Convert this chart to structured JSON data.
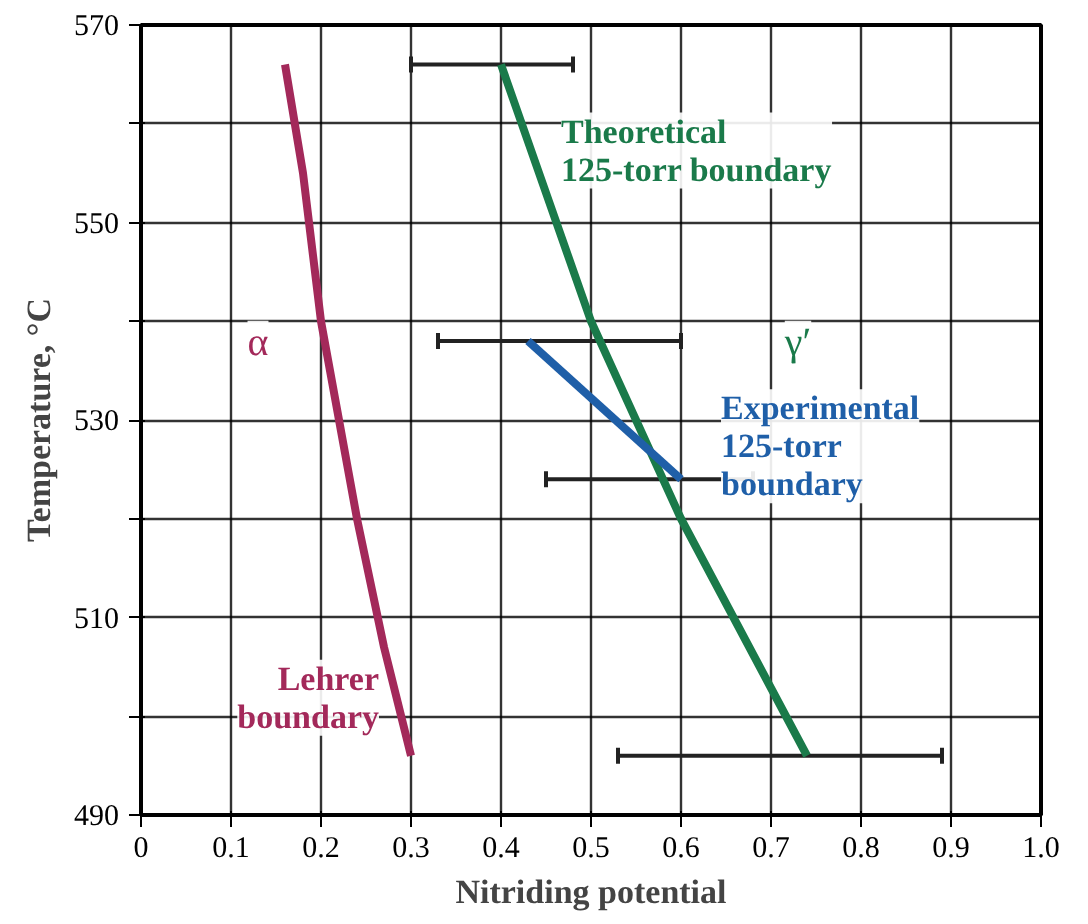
{
  "chart_data": {
    "type": "line",
    "xlabel": "Nitriding potential",
    "ylabel": "Temperature, °C",
    "xlim": [
      0,
      1
    ],
    "ylim": [
      490,
      570
    ],
    "xticks": [
      0,
      0.1,
      0.2,
      0.3,
      0.4,
      0.5,
      0.6,
      0.7,
      0.8,
      0.9,
      {
        "value": 1,
        "label": "1.0"
      }
    ],
    "yticks": [
      490,
      {
        "value": 500,
        "label": null
      },
      510,
      {
        "value": 520,
        "label": null
      },
      530,
      {
        "value": 540,
        "label": null
      },
      550,
      {
        "value": 560,
        "label": null
      },
      570
    ],
    "grid": true,
    "series": [
      {
        "name": "Lehrer\nboundary",
        "color": "#a3295a",
        "x": [
          0.16,
          0.18,
          0.2,
          0.24,
          0.27,
          0.3
        ],
        "values": [
          566,
          555,
          540,
          520,
          507,
          496
        ]
      },
      {
        "name": "Theoretical\n125-torr boundary",
        "color": "#1a7a4a",
        "x": [
          0.4,
          0.5,
          0.6,
          0.74
        ],
        "values": [
          566,
          540,
          520,
          496
        ],
        "xerrors": [
          [
            0.3,
            0.48
          ],
          null,
          null,
          [
            0.53,
            0.89
          ]
        ]
      },
      {
        "name": "Experimental\n125-torr\nboundary",
        "color": "#1f5fa8",
        "x": [
          0.43,
          0.6
        ],
        "values": [
          538,
          524
        ],
        "xerrors": [
          [
            0.33,
            0.6
          ],
          [
            0.45,
            0.68
          ]
        ]
      }
    ],
    "annotations": [
      "α",
      "γ′"
    ]
  }
}
